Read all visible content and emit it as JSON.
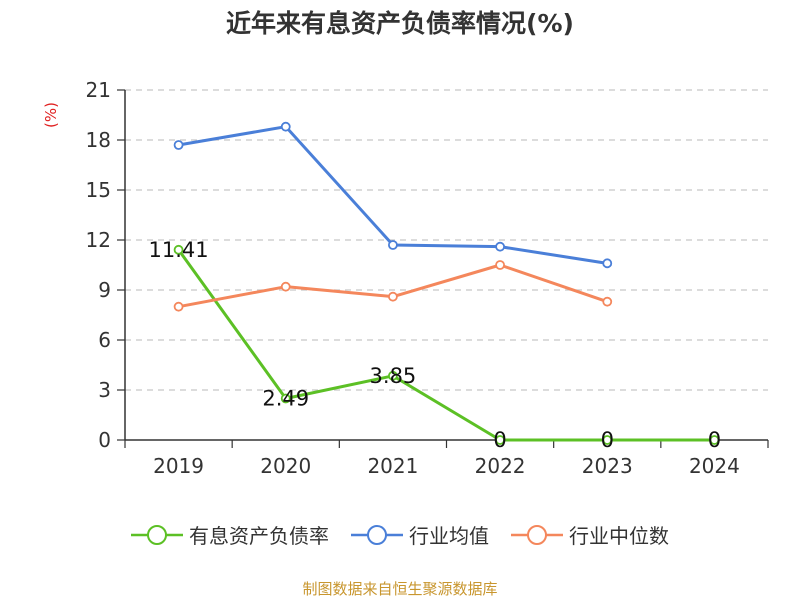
{
  "title": "近年来有息资产负债率情况(%)",
  "footer": "制图数据来自恒生聚源数据库",
  "chart_data": {
    "type": "line",
    "title": "近年来有息资产负债率情况(%)",
    "ylabel": "(%)",
    "xlabel": "",
    "categories": [
      "2019",
      "2020",
      "2021",
      "2022",
      "2023",
      "2024"
    ],
    "ylim": [
      0,
      21
    ],
    "yticks": [
      0,
      3,
      6,
      9,
      12,
      15,
      18,
      21
    ],
    "grid": "horizontal-dashed",
    "legend_position": "bottom",
    "series": [
      {
        "name": "有息资产负债率",
        "color": "#5cc025",
        "values": [
          11.41,
          2.49,
          3.85,
          0,
          0,
          0
        ],
        "labels": [
          "11.41",
          "2.49",
          "3.85",
          "0",
          "0",
          "0"
        ]
      },
      {
        "name": "行业均值",
        "color": "#4a7fd8",
        "values": [
          17.7,
          18.8,
          11.7,
          11.6,
          10.6,
          null
        ]
      },
      {
        "name": "行业中位数",
        "color": "#f4875c",
        "values": [
          8.0,
          9.2,
          8.6,
          10.5,
          8.3,
          null
        ]
      }
    ]
  }
}
